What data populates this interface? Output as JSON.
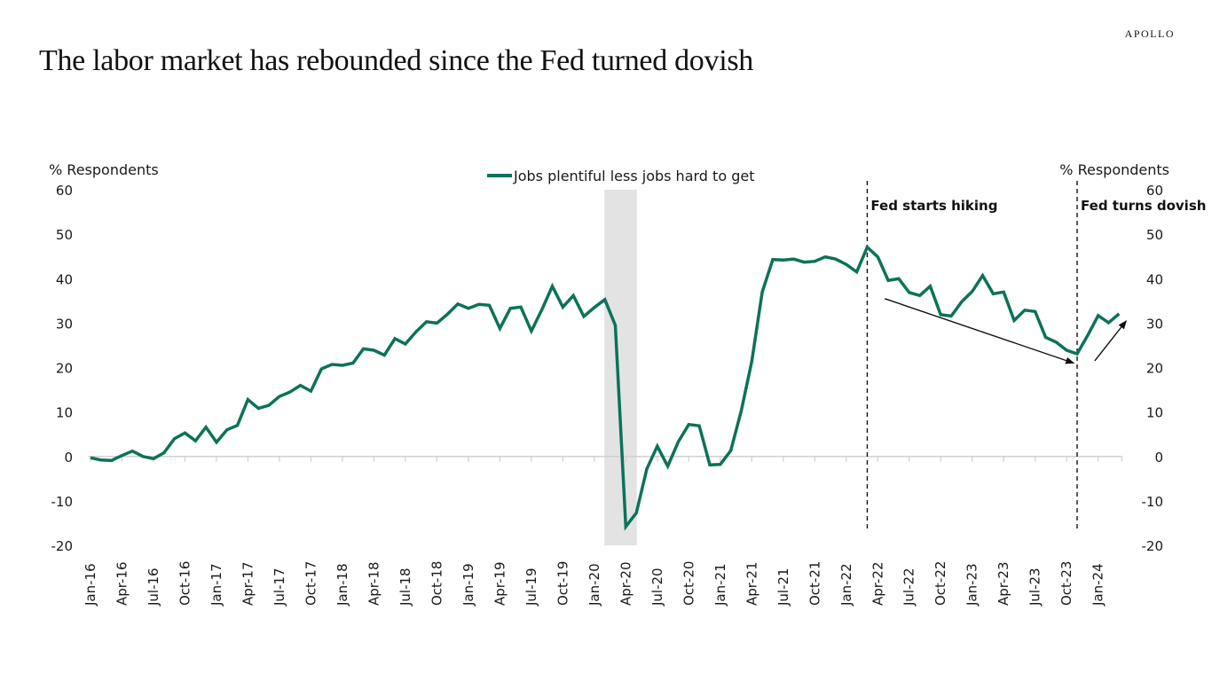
{
  "brand": "APOLLO",
  "title": "The labor market has rebounded since the Fed turned dovish",
  "colors": {
    "line": "#0c7259",
    "recession": "#e3e3e3",
    "axis": "#d0d0d0",
    "annotation": "#111111"
  },
  "chart_data": {
    "type": "line",
    "title": "The labor market has rebounded since the Fed turned dovish",
    "ylabel_left": "% Respondents",
    "ylabel_right": "% Respondents",
    "xlabel": "",
    "ylim": [
      -20,
      60
    ],
    "yticks": [
      60,
      50,
      40,
      30,
      20,
      10,
      0,
      -10,
      -20
    ],
    "grid": false,
    "legend": {
      "position": "top-center",
      "entries": [
        "Jobs plentiful less jobs hard to get"
      ]
    },
    "x_start": "Jan-16",
    "x_tick_labels": [
      "Jan-16",
      "Apr-16",
      "Jul-16",
      "Oct-16",
      "Jan-17",
      "Apr-17",
      "Jul-17",
      "Oct-17",
      "Jan-18",
      "Apr-18",
      "Jul-18",
      "Oct-18",
      "Jan-19",
      "Apr-19",
      "Jul-19",
      "Oct-19",
      "Jan-20",
      "Apr-20",
      "Jul-20",
      "Oct-20",
      "Jan-21",
      "Apr-21",
      "Jul-21",
      "Oct-21",
      "Jan-22",
      "Apr-22",
      "Jul-22",
      "Oct-22",
      "Jan-23",
      "Apr-23",
      "Jul-23",
      "Oct-23",
      "Jan-24"
    ],
    "series": [
      {
        "name": "Jobs plentiful less jobs hard to get",
        "frequency": "monthly",
        "start": "Jan-16",
        "end": "Mar-24",
        "values": [
          -0.3,
          -0.8,
          -0.9,
          0.2,
          1.2,
          0.0,
          -0.5,
          0.8,
          4.0,
          5.3,
          3.5,
          6.6,
          3.2,
          6.0,
          7.0,
          12.8,
          10.8,
          11.5,
          13.5,
          14.5,
          16.0,
          14.7,
          19.7,
          20.7,
          20.5,
          21.0,
          24.2,
          23.9,
          22.8,
          26.5,
          25.3,
          28.0,
          30.3,
          30.0,
          32.0,
          34.3,
          33.3,
          34.2,
          34.0,
          28.8,
          33.3,
          33.6,
          28.2,
          33.0,
          38.3,
          33.6,
          36.2,
          31.5,
          33.5,
          35.3,
          29.5,
          -15.8,
          -12.7,
          -2.8,
          2.3,
          -2.2,
          3.3,
          7.2,
          6.9,
          -1.9,
          -1.8,
          1.3,
          10.3,
          21.4,
          37.0,
          44.3,
          44.2,
          44.4,
          43.7,
          43.9,
          44.9,
          44.4,
          43.2,
          41.5,
          47.1,
          44.9,
          39.6,
          40.0,
          36.9,
          36.2,
          38.3,
          31.9,
          31.6,
          34.8,
          37.1,
          40.7,
          36.6,
          37.0,
          30.6,
          32.9,
          32.6,
          26.8,
          25.7,
          23.9,
          23.1,
          27.2,
          31.7,
          30.1,
          32.1
        ]
      }
    ],
    "recession_band": {
      "start": "Feb-20",
      "end": "Apr-20"
    },
    "annotations": [
      {
        "label": "Fed starts hiking",
        "date": "Mar-22",
        "style": "dashed-vertical"
      },
      {
        "label": "Fed turns dovish",
        "date": "Nov-23",
        "style": "dashed-vertical"
      }
    ],
    "trend_arrows": [
      {
        "from_date": "Apr-22",
        "from_value": 35.5,
        "to_date": "Oct-23",
        "to_value": 21.0,
        "direction": "down"
      },
      {
        "from_date": "Dec-23",
        "from_value": 21.5,
        "to_date": "Mar-24",
        "to_value": 30.5,
        "direction": "up"
      }
    ]
  }
}
